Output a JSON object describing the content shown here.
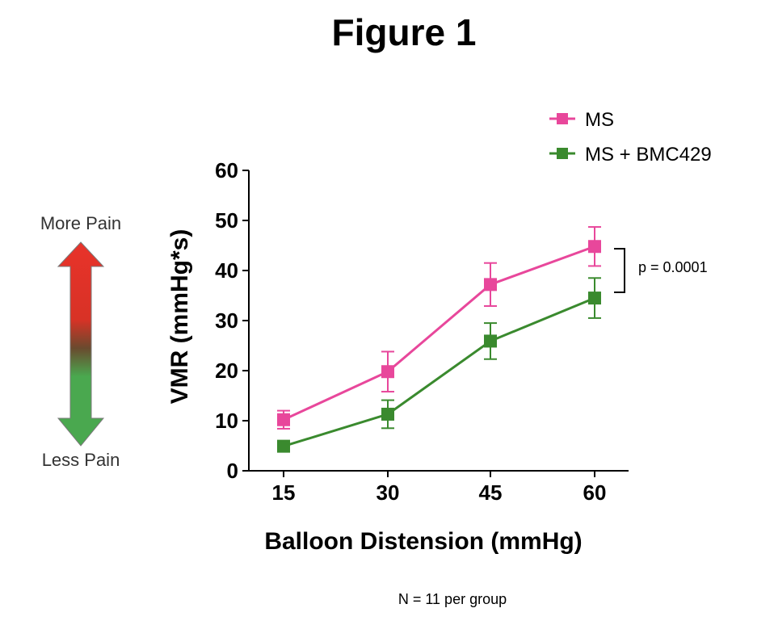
{
  "figure_title": "Figure 1",
  "footnote": "N = 11 per group",
  "pain_scale": {
    "top_label": "More Pain",
    "bottom_label": "Less Pain",
    "colors": {
      "top": "#e8332a",
      "bottom": "#4aa84f"
    }
  },
  "significance": {
    "label": "p =  0.0001"
  },
  "chart_data": {
    "type": "line",
    "x": [
      15,
      30,
      45,
      60
    ],
    "xlabel": "Balloon Distension (mmHg)",
    "ylabel": "VMR (mmHg*s)",
    "ylim": [
      0,
      60
    ],
    "yticks": [
      0,
      10,
      20,
      30,
      40,
      50,
      60
    ],
    "xticks": [
      15,
      30,
      45,
      60
    ],
    "legend_position": "top-right",
    "grid": false,
    "series": [
      {
        "name": "MS",
        "color": "#e8479b",
        "marker": "square",
        "values": [
          10.2,
          19.8,
          37.2,
          44.8
        ],
        "errors": [
          1.8,
          4.0,
          4.3,
          3.9
        ]
      },
      {
        "name": "MS + BMC429",
        "color": "#3a8a2e",
        "marker": "square",
        "values": [
          4.9,
          11.3,
          25.9,
          34.5
        ],
        "errors": [
          0.6,
          2.8,
          3.6,
          4.0
        ]
      }
    ]
  }
}
